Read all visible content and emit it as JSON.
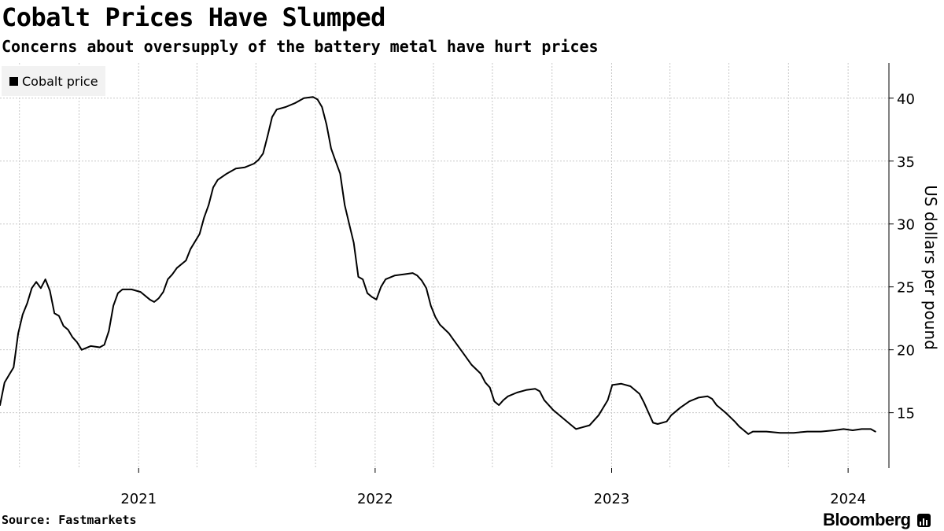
{
  "title": "Cobalt Prices Have Slumped",
  "subtitle": "Concerns about oversupply of the battery metal have hurt prices",
  "source": "Source: Fastmarkets",
  "brand": "Bloomberg",
  "brand_icon": "bloomberg-terminal-icon",
  "colors": {
    "line": "#000000",
    "grid": "#c8c8c8",
    "legend_bg": "#f2f2f2"
  },
  "chart_data": {
    "type": "line",
    "title": "Cobalt Prices Have Slumped",
    "subtitle": "Concerns about oversupply of the battery metal have hurt prices",
    "ylabel": "US dollars per pound",
    "xlabel": "",
    "y_axis_position": "right",
    "ylim": [
      10.6,
      42.8
    ],
    "yticks": [
      15,
      20,
      25,
      30,
      35,
      40
    ],
    "xlim": [
      "2020-06-01",
      "2024-03-04"
    ],
    "xtick_labels": [
      {
        "label": "2021",
        "date": "2021-01-01"
      },
      {
        "label": "2022",
        "date": "2022-01-01"
      },
      {
        "label": "2023",
        "date": "2023-01-01"
      },
      {
        "label": "2024",
        "date": "2024-01-01"
      }
    ],
    "grid": true,
    "legend": {
      "position": "top-left",
      "entries": [
        "Cobalt price"
      ]
    },
    "series": [
      {
        "name": "Cobalt price",
        "color": "#000000",
        "points": [
          [
            "2020-06-01",
            15.6
          ],
          [
            "2020-06-08",
            17.4
          ],
          [
            "2020-06-15",
            18.0
          ],
          [
            "2020-06-22",
            18.6
          ],
          [
            "2020-06-29",
            21.3
          ],
          [
            "2020-07-06",
            22.8
          ],
          [
            "2020-07-13",
            23.7
          ],
          [
            "2020-07-20",
            24.9
          ],
          [
            "2020-07-27",
            25.4
          ],
          [
            "2020-08-03",
            24.9
          ],
          [
            "2020-08-10",
            25.6
          ],
          [
            "2020-08-17",
            24.7
          ],
          [
            "2020-08-24",
            22.9
          ],
          [
            "2020-08-31",
            22.7
          ],
          [
            "2020-09-07",
            21.9
          ],
          [
            "2020-09-14",
            21.6
          ],
          [
            "2020-09-21",
            21.0
          ],
          [
            "2020-09-28",
            20.6
          ],
          [
            "2020-10-05",
            20.0
          ],
          [
            "2020-10-19",
            20.3
          ],
          [
            "2020-11-02",
            20.2
          ],
          [
            "2020-11-09",
            20.4
          ],
          [
            "2020-11-16",
            21.5
          ],
          [
            "2020-11-23",
            23.5
          ],
          [
            "2020-11-30",
            24.5
          ],
          [
            "2020-12-07",
            24.8
          ],
          [
            "2020-12-21",
            24.8
          ],
          [
            "2021-01-04",
            24.6
          ],
          [
            "2021-01-18",
            24.0
          ],
          [
            "2021-01-25",
            23.8
          ],
          [
            "2021-02-01",
            24.1
          ],
          [
            "2021-02-08",
            24.6
          ],
          [
            "2021-02-15",
            25.6
          ],
          [
            "2021-02-22",
            26.0
          ],
          [
            "2021-03-01",
            26.5
          ],
          [
            "2021-03-15",
            27.1
          ],
          [
            "2021-03-22",
            28.0
          ],
          [
            "2021-04-05",
            29.2
          ],
          [
            "2021-04-12",
            30.5
          ],
          [
            "2021-04-19",
            31.5
          ],
          [
            "2021-04-26",
            32.9
          ],
          [
            "2021-05-03",
            33.5
          ],
          [
            "2021-05-17",
            34.0
          ],
          [
            "2021-05-31",
            34.4
          ],
          [
            "2021-06-14",
            34.5
          ],
          [
            "2021-06-28",
            34.8
          ],
          [
            "2021-07-05",
            35.1
          ],
          [
            "2021-07-12",
            35.6
          ],
          [
            "2021-07-19",
            37.0
          ],
          [
            "2021-07-26",
            38.5
          ],
          [
            "2021-08-02",
            39.1
          ],
          [
            "2021-08-16",
            39.3
          ],
          [
            "2021-08-30",
            39.6
          ],
          [
            "2021-09-13",
            40.0
          ],
          [
            "2021-09-27",
            40.1
          ],
          [
            "2021-10-04",
            39.9
          ],
          [
            "2021-10-11",
            39.3
          ],
          [
            "2021-10-18",
            37.9
          ],
          [
            "2021-10-25",
            36.0
          ],
          [
            "2021-11-01",
            35.0
          ],
          [
            "2021-11-08",
            34.0
          ],
          [
            "2021-11-15",
            31.5
          ],
          [
            "2021-11-22",
            30.0
          ],
          [
            "2021-11-29",
            28.5
          ],
          [
            "2021-12-06",
            25.8
          ],
          [
            "2021-12-13",
            25.6
          ],
          [
            "2021-12-20",
            24.5
          ],
          [
            "2021-12-27",
            24.2
          ],
          [
            "2022-01-03",
            24.0
          ],
          [
            "2022-01-10",
            25.0
          ],
          [
            "2022-01-17",
            25.6
          ],
          [
            "2022-01-31",
            25.9
          ],
          [
            "2022-02-14",
            26.0
          ],
          [
            "2022-02-28",
            26.1
          ],
          [
            "2022-03-07",
            25.9
          ],
          [
            "2022-03-14",
            25.5
          ],
          [
            "2022-03-21",
            24.9
          ],
          [
            "2022-03-28",
            23.5
          ],
          [
            "2022-04-04",
            22.6
          ],
          [
            "2022-04-11",
            22.0
          ],
          [
            "2022-04-25",
            21.3
          ],
          [
            "2022-05-02",
            20.8
          ],
          [
            "2022-05-16",
            19.8
          ],
          [
            "2022-05-30",
            18.8
          ],
          [
            "2022-06-13",
            18.1
          ],
          [
            "2022-06-20",
            17.4
          ],
          [
            "2022-06-27",
            17.0
          ],
          [
            "2022-07-04",
            15.9
          ],
          [
            "2022-07-11",
            15.6
          ],
          [
            "2022-07-18",
            16.0
          ],
          [
            "2022-07-25",
            16.3
          ],
          [
            "2022-08-08",
            16.6
          ],
          [
            "2022-08-22",
            16.8
          ],
          [
            "2022-09-05",
            16.9
          ],
          [
            "2022-09-12",
            16.7
          ],
          [
            "2022-09-19",
            16.0
          ],
          [
            "2022-10-03",
            15.2
          ],
          [
            "2022-10-17",
            14.6
          ],
          [
            "2022-10-31",
            14.0
          ],
          [
            "2022-11-07",
            13.7
          ],
          [
            "2022-11-14",
            13.8
          ],
          [
            "2022-11-28",
            14.0
          ],
          [
            "2022-12-12",
            14.8
          ],
          [
            "2022-12-26",
            16.0
          ],
          [
            "2023-01-02",
            17.2
          ],
          [
            "2023-01-16",
            17.3
          ],
          [
            "2023-01-30",
            17.1
          ],
          [
            "2023-02-13",
            16.5
          ],
          [
            "2023-02-20",
            15.8
          ],
          [
            "2023-02-27",
            15.0
          ],
          [
            "2023-03-06",
            14.2
          ],
          [
            "2023-03-13",
            14.1
          ],
          [
            "2023-03-27",
            14.3
          ],
          [
            "2023-04-03",
            14.8
          ],
          [
            "2023-04-17",
            15.4
          ],
          [
            "2023-05-01",
            15.9
          ],
          [
            "2023-05-15",
            16.2
          ],
          [
            "2023-05-29",
            16.3
          ],
          [
            "2023-06-05",
            16.1
          ],
          [
            "2023-06-12",
            15.6
          ],
          [
            "2023-06-26",
            15.0
          ],
          [
            "2023-07-10",
            14.3
          ],
          [
            "2023-07-17",
            13.9
          ],
          [
            "2023-07-24",
            13.6
          ],
          [
            "2023-07-31",
            13.3
          ],
          [
            "2023-08-07",
            13.5
          ],
          [
            "2023-08-28",
            13.5
          ],
          [
            "2023-09-18",
            13.4
          ],
          [
            "2023-10-09",
            13.4
          ],
          [
            "2023-10-30",
            13.5
          ],
          [
            "2023-11-20",
            13.5
          ],
          [
            "2023-12-11",
            13.6
          ],
          [
            "2023-12-25",
            13.7
          ],
          [
            "2024-01-08",
            13.6
          ],
          [
            "2024-01-22",
            13.7
          ],
          [
            "2024-02-05",
            13.7
          ],
          [
            "2024-02-12",
            13.5
          ]
        ]
      }
    ]
  }
}
